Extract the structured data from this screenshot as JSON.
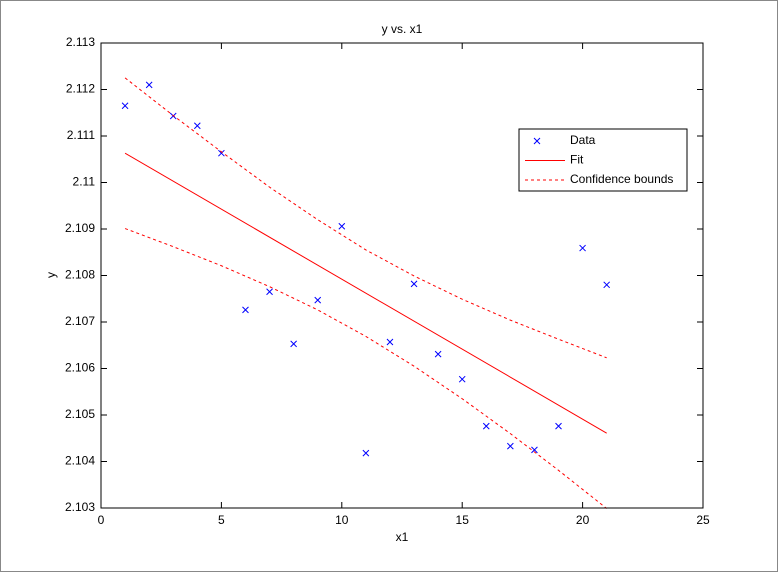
{
  "chart_data": {
    "type": "scatter-fit",
    "title": "y vs. x1",
    "xlabel": "x1",
    "ylabel": "y",
    "xlim": [
      0,
      25
    ],
    "xticks": [
      0,
      5,
      10,
      15,
      20,
      25
    ],
    "ylim": [
      2.103,
      2.113
    ],
    "yticks": [
      2.103,
      2.104,
      2.105,
      2.106,
      2.107,
      2.108,
      2.109,
      2.11,
      2.111,
      2.112,
      2.113
    ],
    "legend": "upper-right",
    "series": [
      {
        "name": "Data",
        "style": "marker",
        "color": "#0000ff",
        "x": [
          1,
          2,
          3,
          4,
          5,
          6,
          7,
          8,
          9,
          10,
          11,
          12,
          13,
          14,
          15,
          16,
          17,
          18,
          19,
          20,
          21
        ],
        "values": [
          2.11165,
          2.1121,
          2.11143,
          2.11122,
          2.11063,
          2.10726,
          2.10765,
          2.10653,
          2.10747,
          2.10906,
          2.10418,
          2.10657,
          2.10782,
          2.10631,
          2.10577,
          2.10476,
          2.10433,
          2.10425,
          2.10476,
          2.10859,
          2.1078
        ]
      },
      {
        "name": "Fit",
        "style": "solid",
        "color": "#ff0000",
        "x": [
          1,
          21
        ],
        "values": [
          2.11063,
          2.10461
        ]
      },
      {
        "name": "Confidence bounds",
        "style": "dashed",
        "color": "#ff0000",
        "x": [
          1,
          3,
          5,
          7,
          9,
          11,
          13,
          15,
          17,
          19,
          21
        ],
        "values": [
          2.11225,
          2.11144,
          2.11066,
          2.1099,
          2.1092,
          2.10855,
          2.10799,
          2.10749,
          2.10704,
          2.10663,
          2.10623
        ]
      },
      {
        "style": "dashed",
        "color": "#ff0000",
        "x": [
          1,
          3,
          5,
          7,
          9,
          11,
          13,
          15,
          17,
          19,
          21
        ],
        "values": [
          2.10901,
          2.10862,
          2.10821,
          2.10776,
          2.10726,
          2.10669,
          2.10605,
          2.10535,
          2.1046,
          2.10381,
          2.10299
        ]
      }
    ]
  }
}
